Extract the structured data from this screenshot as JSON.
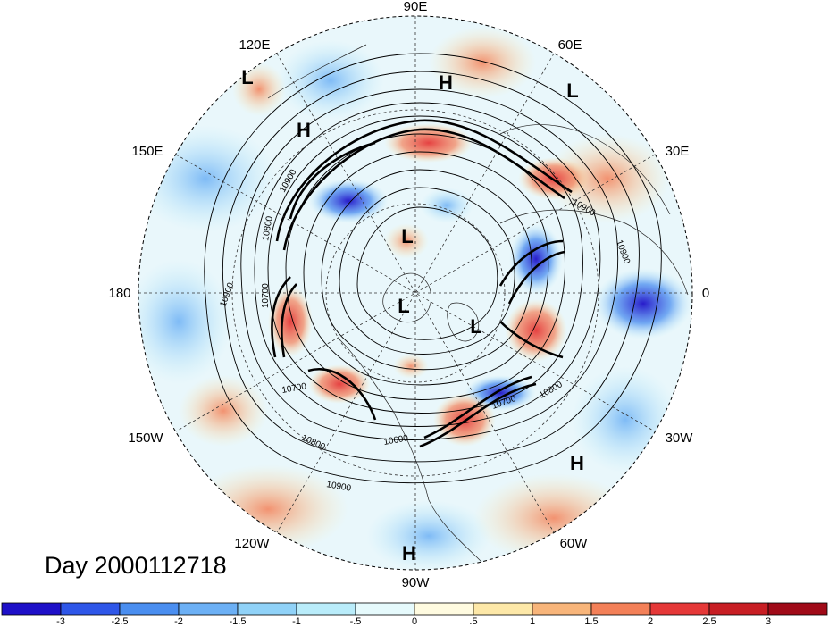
{
  "title": "Day 2000112718",
  "longitude_labels": [
    "90E",
    "60E",
    "30E",
    "0",
    "30W",
    "60W",
    "90W",
    "120W",
    "150W",
    "180",
    "150E",
    "120E"
  ],
  "pressure_systems": [
    {
      "type": "L",
      "near": "120E"
    },
    {
      "type": "H",
      "near": "120E"
    },
    {
      "type": "H",
      "near": "90E"
    },
    {
      "type": "L",
      "near": "60E"
    },
    {
      "type": "L",
      "near": "pole"
    },
    {
      "type": "L",
      "near": "pole"
    },
    {
      "type": "L",
      "near": "pole"
    },
    {
      "type": "H",
      "near": "30W"
    },
    {
      "type": "H",
      "near": "90W"
    }
  ],
  "contour_labels": [
    "10900",
    "10800",
    "10700",
    "10900",
    "10700",
    "10600",
    "10800",
    "10900",
    "10700",
    "10800",
    "10900",
    "10900"
  ],
  "colorbar": {
    "ticks": [
      "-3",
      "-2.5",
      "-2",
      "-1.5",
      "-1",
      "-.5",
      "0",
      ".5",
      "1",
      "1.5",
      "2",
      "2.5",
      "3"
    ],
    "colors": [
      "#1e10c8",
      "#2e56e8",
      "#4a8ef0",
      "#6cb0f5",
      "#90d2f8",
      "#b9ecfa",
      "#e6fafc",
      "#fffbe0",
      "#fde8a8",
      "#f8b57a",
      "#f38058",
      "#e53838",
      "#c81e24",
      "#a00a18"
    ]
  }
}
